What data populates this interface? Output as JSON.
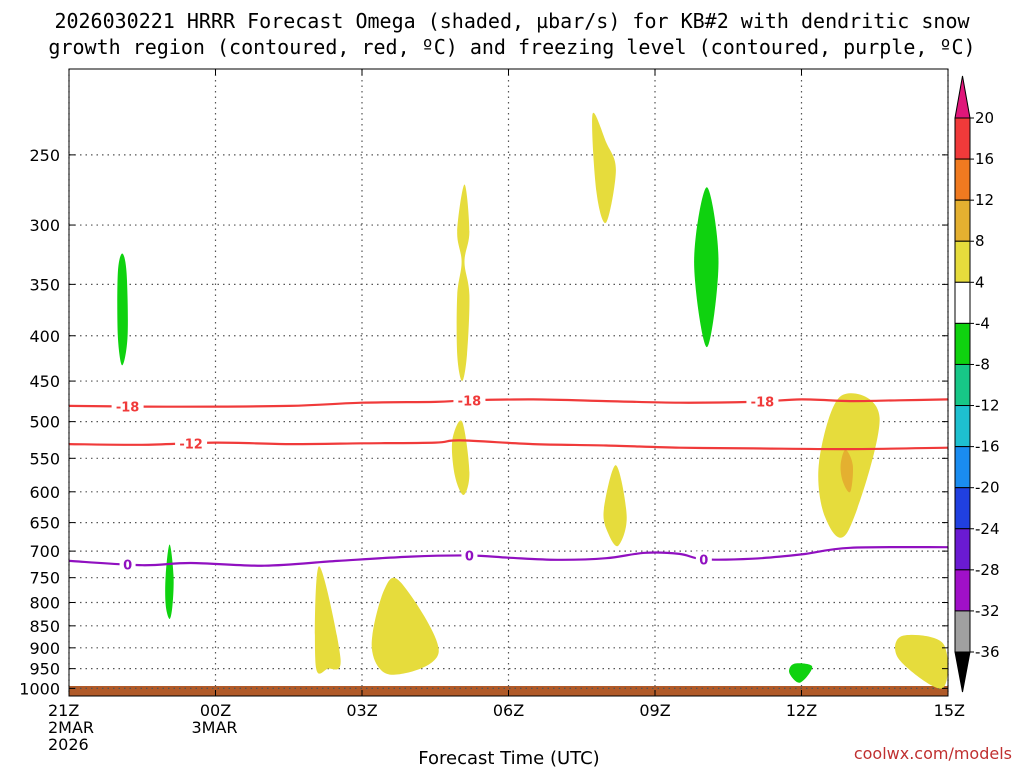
{
  "chart_data": {
    "type": "heatmap",
    "title_lines": [
      "2026030221 HRRR Forecast Omega (shaded, µbar/s) for KB#2 with dendritic snow",
      "growth region (contoured, red, ºC) and freezing level (contoured, purple, ºC)"
    ],
    "xlabel": "Forecast Time (UTC)",
    "credit": "coolwx.com/models",
    "x_range_hours": [
      0,
      18
    ],
    "x_ticks": [
      {
        "h": 0,
        "lines": [
          "21Z",
          "2MAR",
          "2026"
        ]
      },
      {
        "h": 3,
        "lines": [
          "00Z",
          "3MAR"
        ]
      },
      {
        "h": 6,
        "lines": [
          "03Z"
        ]
      },
      {
        "h": 9,
        "lines": [
          "06Z"
        ]
      },
      {
        "h": 12,
        "lines": [
          "09Z"
        ]
      },
      {
        "h": 15,
        "lines": [
          "12Z"
        ]
      },
      {
        "h": 18,
        "lines": [
          "15Z"
        ]
      }
    ],
    "y_scale": "log-pressure (hPa)",
    "y_range": [
      1020,
      200
    ],
    "y_ticks": [
      250,
      300,
      350,
      400,
      450,
      500,
      550,
      600,
      650,
      700,
      750,
      800,
      850,
      900,
      950,
      1000
    ],
    "grid": true,
    "colorbar": {
      "levels": [
        20,
        16,
        12,
        8,
        4,
        -4,
        -8,
        -12,
        -16,
        -20,
        -24,
        -28,
        -32,
        -36
      ],
      "colors": [
        "#e0167a",
        "#f03a3a",
        "#f07a20",
        "#e4b030",
        "#e6dc3c",
        "#ffffff",
        "#0fd20f",
        "#17c787",
        "#1ec0d0",
        "#1a8cf0",
        "#2040e0",
        "#6a1ad2",
        "#a010c8",
        "#a0a0a0",
        "#000000"
      ]
    },
    "omega_regions": [
      {
        "color": "#0fd20f",
        "points": [
          [
            1.09,
            323
          ],
          [
            1.18,
            340
          ],
          [
            1.2,
            400
          ],
          [
            1.09,
            432
          ],
          [
            1.0,
            400
          ],
          [
            1.0,
            340
          ]
        ]
      },
      {
        "color": "#0fd20f",
        "points": [
          [
            2.06,
            688
          ],
          [
            2.14,
            745
          ],
          [
            2.12,
            805
          ],
          [
            2.06,
            835
          ],
          [
            1.98,
            805
          ],
          [
            1.98,
            745
          ]
        ]
      },
      {
        "color": "#0fd20f",
        "points": [
          [
            13.06,
            272
          ],
          [
            13.3,
            330
          ],
          [
            13.06,
            412
          ],
          [
            12.8,
            330
          ]
        ]
      },
      {
        "color": "#0fd20f",
        "points": [
          [
            14.85,
            938
          ],
          [
            15.22,
            945
          ],
          [
            14.97,
            985
          ],
          [
            14.75,
            960
          ]
        ]
      },
      {
        "color": "#e6dc3c",
        "points": [
          [
            8.1,
            270
          ],
          [
            8.2,
            305
          ],
          [
            8.1,
            330
          ],
          [
            8.2,
            360
          ],
          [
            8.15,
            420
          ],
          [
            8.05,
            450
          ],
          [
            7.95,
            420
          ],
          [
            7.95,
            360
          ],
          [
            8.04,
            330
          ],
          [
            7.95,
            305
          ]
        ]
      },
      {
        "color": "#e6dc3c",
        "points": [
          [
            11.0,
            242
          ],
          [
            11.2,
            260
          ],
          [
            11.0,
            298
          ],
          [
            10.8,
            275
          ],
          [
            10.72,
            225
          ]
        ]
      },
      {
        "color": "#e6dc3c",
        "points": [
          [
            8.05,
            500
          ],
          [
            8.2,
            570
          ],
          [
            8.08,
            605
          ],
          [
            7.9,
            575
          ],
          [
            7.85,
            525
          ]
        ]
      },
      {
        "color": "#e6dc3c",
        "points": [
          [
            11.2,
            560
          ],
          [
            11.42,
            640
          ],
          [
            11.25,
            690
          ],
          [
            11.05,
            670
          ],
          [
            10.95,
            630
          ]
        ]
      },
      {
        "color": "#e6dc3c",
        "points": [
          [
            15.8,
            468
          ],
          [
            16.6,
            495
          ],
          [
            15.95,
            665
          ],
          [
            15.48,
            640
          ],
          [
            15.36,
            555
          ]
        ]
      },
      {
        "color": "#e4b030",
        "points": [
          [
            15.9,
            538
          ],
          [
            16.05,
            560
          ],
          [
            16.0,
            600
          ],
          [
            15.85,
            585
          ],
          [
            15.8,
            560
          ]
        ]
      },
      {
        "color": "#e6dc3c",
        "points": [
          [
            5.12,
            728
          ],
          [
            5.56,
            925
          ],
          [
            5.3,
            950
          ],
          [
            5.05,
            940
          ]
        ]
      },
      {
        "color": "#e6dc3c",
        "points": [
          [
            6.8,
            760
          ],
          [
            7.57,
            910
          ],
          [
            6.6,
            965
          ],
          [
            6.2,
            900
          ],
          [
            6.45,
            775
          ]
        ]
      },
      {
        "color": "#e6dc3c",
        "points": [
          [
            17.05,
            873
          ],
          [
            17.9,
            890
          ],
          [
            17.88,
            1000
          ],
          [
            17.0,
            928
          ]
        ]
      }
    ],
    "contours": [
      {
        "label": "-18",
        "color": "#f03a3a",
        "points": [
          [
            0,
            480
          ],
          [
            2,
            481
          ],
          [
            4.5,
            480
          ],
          [
            6,
            476
          ],
          [
            7.5,
            475
          ],
          [
            8.2,
            473
          ],
          [
            9.5,
            472
          ],
          [
            11,
            474
          ],
          [
            12.5,
            476
          ],
          [
            14,
            475
          ],
          [
            15,
            472
          ],
          [
            16,
            474
          ],
          [
            17,
            473
          ],
          [
            18,
            472
          ]
        ],
        "label_at": [
          1.2,
          8.2,
          14.2
        ]
      },
      {
        "label": "-12",
        "color": "#f03a3a",
        "points": [
          [
            0,
            530
          ],
          [
            1.5,
            531
          ],
          [
            3,
            528
          ],
          [
            4.5,
            530
          ],
          [
            6,
            529
          ],
          [
            7.5,
            528
          ],
          [
            8,
            525
          ],
          [
            9.5,
            530
          ],
          [
            11,
            532
          ],
          [
            12.5,
            535
          ],
          [
            14,
            536
          ],
          [
            16,
            537
          ],
          [
            18,
            535
          ]
        ],
        "label_at": [
          2.5
        ]
      },
      {
        "label": "0",
        "color": "#9010c0",
        "points": [
          [
            0,
            718
          ],
          [
            1.5,
            726
          ],
          [
            2.5,
            722
          ],
          [
            4,
            727
          ],
          [
            5.5,
            718
          ],
          [
            7,
            710
          ],
          [
            8.2,
            708
          ],
          [
            9,
            712
          ],
          [
            10,
            716
          ],
          [
            11,
            713
          ],
          [
            11.8,
            703
          ],
          [
            12.5,
            705
          ],
          [
            13,
            715
          ],
          [
            14,
            714
          ],
          [
            15,
            706
          ],
          [
            16,
            694
          ],
          [
            18,
            693
          ]
        ],
        "label_at": [
          1.2,
          8.2,
          13.0
        ]
      }
    ],
    "ground_band_hpa": [
      1022,
      1035
    ]
  }
}
